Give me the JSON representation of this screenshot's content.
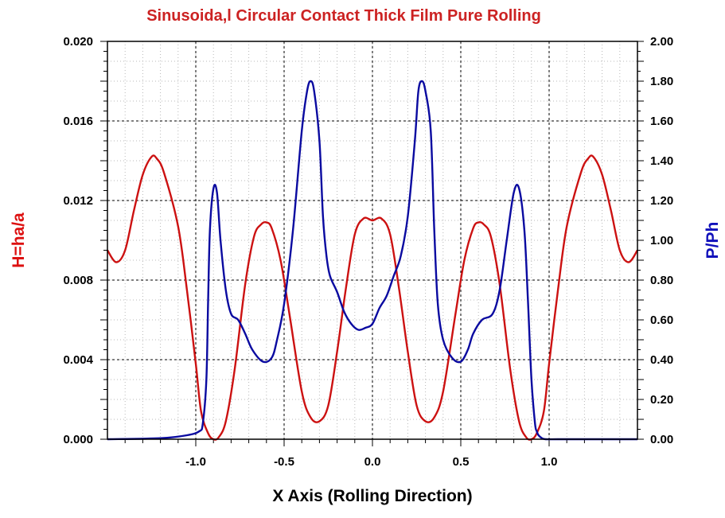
{
  "chart_data": {
    "type": "line",
    "title": "Sinusoida,l Circular Contact Thick Film Pure Rolling",
    "xlabel": "X Axis (Rolling Direction)",
    "ylabel_left": "H=ha/a",
    "ylabel_right": "P/Ph",
    "xlim": [
      -1.5,
      1.5
    ],
    "ylim_left": [
      0,
      0.02
    ],
    "ylim_right": [
      0,
      2.0
    ],
    "x_ticks": [
      "-1.0",
      "-0.5",
      "0.0",
      "0.5",
      "1.0"
    ],
    "y_left_ticks": [
      "0.000",
      "0.004",
      "0.008",
      "0.012",
      "0.016",
      "0.020"
    ],
    "y_right_ticks": [
      "0.00",
      "0.20",
      "0.40",
      "0.60",
      "0.80",
      "1.00",
      "1.20",
      "1.40",
      "1.60",
      "1.80",
      "2.00"
    ],
    "grid": true,
    "colors": {
      "title": "#cc2222",
      "left_axis": "#dd1111",
      "right_axis": "#1111bb",
      "film_thickness": "#cc1111",
      "pressure": "#0a0aa0"
    },
    "series": [
      {
        "axis": "left",
        "x": [
          -1.5,
          -1.45,
          -1.4,
          -1.35,
          -1.3,
          -1.25,
          -1.22,
          -1.18,
          -1.1,
          -1.05,
          -1.0,
          -0.97,
          -0.93,
          -0.9,
          -0.87,
          -0.83,
          -0.78,
          -0.72,
          -0.67,
          -0.63,
          -0.6,
          -0.57,
          -0.52,
          -0.47,
          -0.4,
          -0.35,
          -0.3,
          -0.25,
          -0.2,
          -0.15,
          -0.1,
          -0.05,
          0.0,
          0.05,
          0.1,
          0.15,
          0.2,
          0.25,
          0.3,
          0.35,
          0.4,
          0.47,
          0.52,
          0.57,
          0.6,
          0.63,
          0.67,
          0.72,
          0.78,
          0.83,
          0.87,
          0.9,
          0.93,
          0.97,
          1.0,
          1.05,
          1.1,
          1.18,
          1.22,
          1.25,
          1.3,
          1.35,
          1.4,
          1.45,
          1.5
        ],
        "y": [
          0.0095,
          0.0089,
          0.0095,
          0.0115,
          0.0133,
          0.0142,
          0.0141,
          0.0134,
          0.0107,
          0.0075,
          0.0038,
          0.0014,
          0.0003,
          0.0,
          0.0001,
          0.0009,
          0.0035,
          0.0078,
          0.0102,
          0.0108,
          0.0109,
          0.0106,
          0.009,
          0.0063,
          0.0024,
          0.0011,
          0.0009,
          0.0017,
          0.0044,
          0.0076,
          0.0103,
          0.0111,
          0.011,
          0.0111,
          0.0103,
          0.0076,
          0.0044,
          0.0017,
          0.0009,
          0.0011,
          0.0024,
          0.0063,
          0.009,
          0.0106,
          0.0109,
          0.0108,
          0.0102,
          0.0078,
          0.0035,
          0.0009,
          0.0001,
          0.0,
          0.0003,
          0.0014,
          0.0038,
          0.0075,
          0.0107,
          0.0134,
          0.0141,
          0.0142,
          0.0133,
          0.0115,
          0.0095,
          0.0089,
          0.0095
        ]
      },
      {
        "axis": "right",
        "x": [
          -1.5,
          -1.2,
          -1.05,
          -0.98,
          -0.96,
          -0.94,
          -0.93,
          -0.92,
          -0.9,
          -0.88,
          -0.86,
          -0.83,
          -0.8,
          -0.76,
          -0.72,
          -0.68,
          -0.62,
          -0.57,
          -0.54,
          -0.5,
          -0.45,
          -0.4,
          -0.37,
          -0.35,
          -0.33,
          -0.3,
          -0.28,
          -0.26,
          -0.24,
          -0.2,
          -0.16,
          -0.12,
          -0.08,
          -0.04,
          0.0,
          0.04,
          0.08,
          0.12,
          0.16,
          0.2,
          0.24,
          0.26,
          0.28,
          0.3,
          0.33,
          0.35,
          0.37,
          0.4,
          0.45,
          0.5,
          0.54,
          0.57,
          0.62,
          0.68,
          0.72,
          0.76,
          0.8,
          0.83,
          0.86,
          0.88,
          0.9,
          0.92,
          0.93,
          0.94,
          0.96,
          0.98,
          1.05,
          1.2,
          1.5
        ],
        "y": [
          0.0,
          0.005,
          0.02,
          0.04,
          0.08,
          0.3,
          0.7,
          1.05,
          1.26,
          1.24,
          1.0,
          0.75,
          0.63,
          0.6,
          0.53,
          0.45,
          0.39,
          0.41,
          0.5,
          0.68,
          1.05,
          1.55,
          1.75,
          1.8,
          1.75,
          1.5,
          1.12,
          0.92,
          0.82,
          0.74,
          0.64,
          0.58,
          0.55,
          0.56,
          0.58,
          0.66,
          0.72,
          0.82,
          0.92,
          1.12,
          1.5,
          1.75,
          1.8,
          1.75,
          1.55,
          1.05,
          0.68,
          0.5,
          0.41,
          0.39,
          0.45,
          0.53,
          0.6,
          0.63,
          0.75,
          1.0,
          1.24,
          1.26,
          1.05,
          0.7,
          0.3,
          0.08,
          0.04,
          0.02,
          0.005,
          0.0,
          0.0,
          0.0,
          0.0
        ]
      }
    ]
  }
}
